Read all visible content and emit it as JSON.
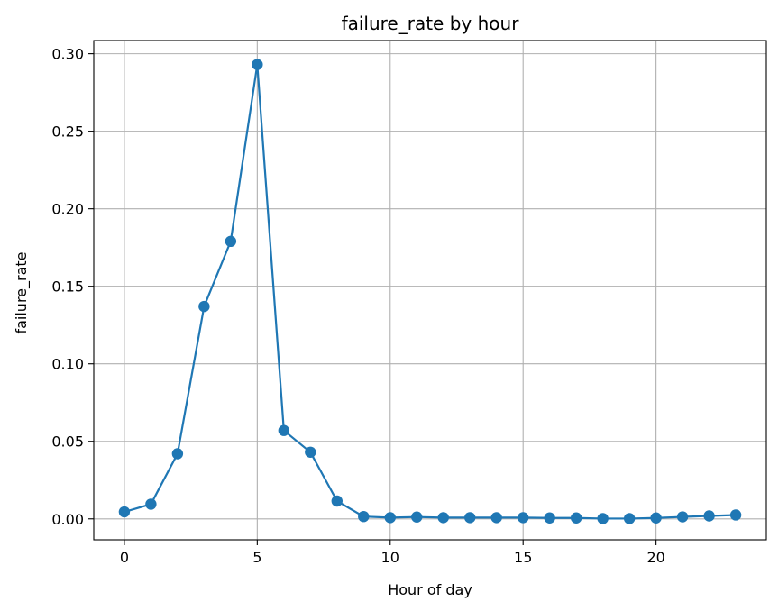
{
  "chart_data": {
    "type": "line",
    "title": "failure_rate by hour",
    "xlabel": "Hour of day",
    "ylabel": "failure_rate",
    "xlim": [
      -1.15,
      24.15
    ],
    "ylim": [
      -0.0135,
      0.3085
    ],
    "grid": true,
    "x_ticks": [
      0,
      5,
      10,
      15,
      20
    ],
    "x_tick_labels": [
      "0",
      "5",
      "10",
      "15",
      "20"
    ],
    "y_ticks": [
      0.0,
      0.05,
      0.1,
      0.15,
      0.2,
      0.25,
      0.3
    ],
    "y_tick_labels": [
      "0.00",
      "0.05",
      "0.10",
      "0.15",
      "0.20",
      "0.25",
      "0.30"
    ],
    "color": "#1f77b4",
    "series": [
      {
        "marker": "circle",
        "x": [
          0,
          1,
          2,
          3,
          4,
          5,
          6,
          7,
          8,
          9,
          10,
          11,
          12,
          13,
          14,
          15,
          16,
          17,
          18,
          19,
          20,
          21,
          22,
          23
        ],
        "y": [
          0.0045,
          0.0095,
          0.042,
          0.137,
          0.179,
          0.293,
          0.057,
          0.043,
          0.0115,
          0.0015,
          0.0008,
          0.0012,
          0.0008,
          0.0008,
          0.0008,
          0.0008,
          0.0006,
          0.0006,
          0.0002,
          0.0002,
          0.0006,
          0.0013,
          0.0019,
          0.0025
        ]
      }
    ]
  }
}
